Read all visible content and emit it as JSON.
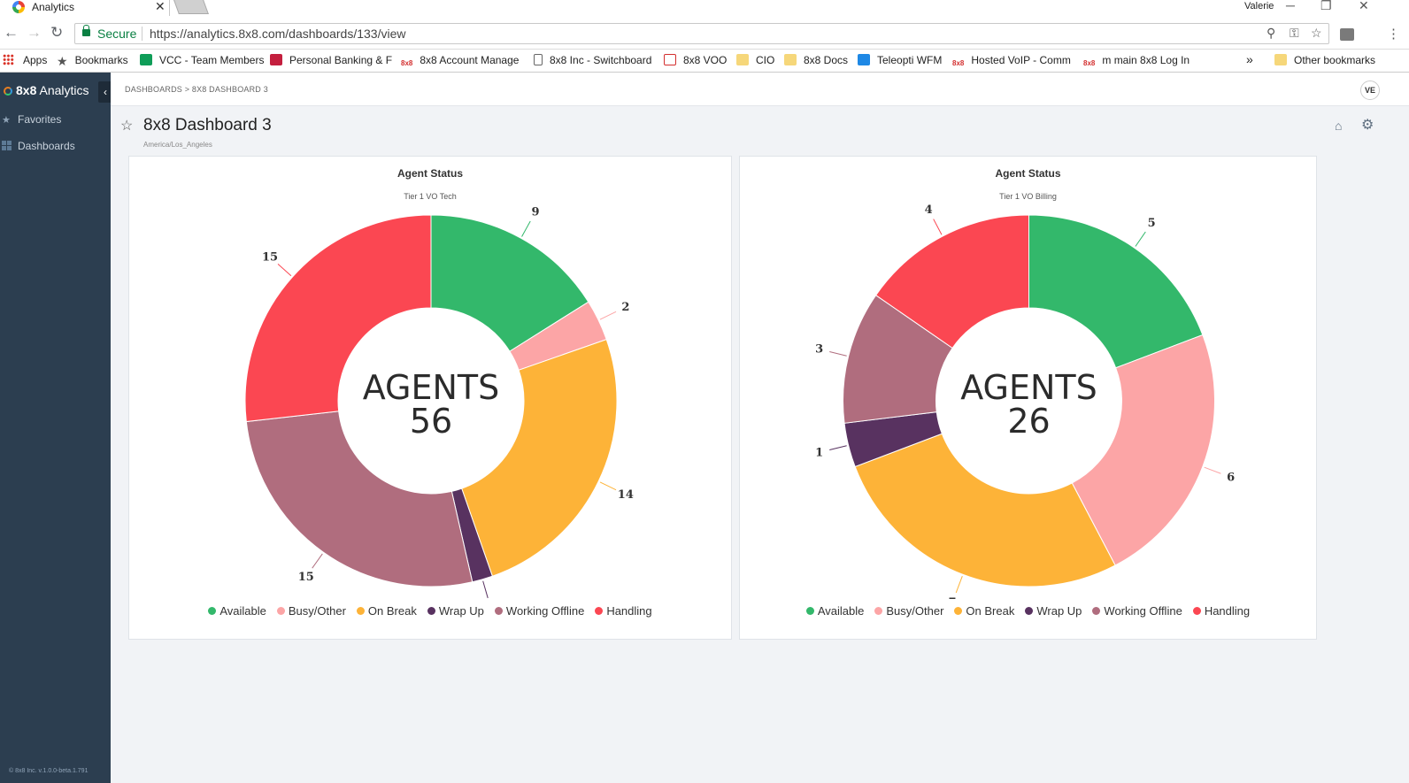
{
  "browser": {
    "tab_title": "Analytics",
    "tab_close": "✕",
    "user": "Valerie",
    "secure_label": "Secure",
    "url": "https://analytics.8x8.com/dashboards/133/view",
    "bookmarks": {
      "apps": "Apps",
      "bookmarks": "Bookmarks",
      "vcc": "VCC - Team Members",
      "banking": "Personal Banking & F",
      "account": "8x8 Account Manage",
      "switchboard": "8x8 Inc - Switchboard",
      "voo": "8x8 VOO",
      "cio": "CIO",
      "docs": "8x8 Docs",
      "teleopti": "Teleopti WFM",
      "hosted": "Hosted VoIP - Comm",
      "main": "m main 8x8 Log In",
      "more": "»",
      "other": "Other bookmarks"
    }
  },
  "sidebar": {
    "brand_bold": "8x8",
    "brand_rest": " Analytics",
    "collapse": "‹",
    "items": [
      {
        "label": "Favorites"
      },
      {
        "label": "Dashboards"
      }
    ],
    "version": "© 8x8 Inc. v.1.0.0-beta.1.791"
  },
  "header": {
    "breadcrumb": "DASHBOARDS > 8X8 DASHBOARD 3",
    "avatar": "VE",
    "title": "8x8 Dashboard 3",
    "timezone": "America/Los_Angeles"
  },
  "colors": {
    "available": "#33b86b",
    "busy_other": "#fca5a6",
    "on_break": "#fdb338",
    "wrap_up": "#583260",
    "working_offline": "#b06d7e",
    "handling": "#fb4752"
  },
  "chart_data": [
    {
      "type": "pie",
      "title": "Agent Status",
      "subtitle": "Tier 1 VO Tech",
      "center_label": "AGENTS",
      "center_value": "56",
      "categories": [
        "Available",
        "Busy/Other",
        "On Break",
        "Wrap Up",
        "Working Offline",
        "Handling"
      ],
      "values": [
        9,
        2,
        14,
        1,
        15,
        15
      ],
      "legend": "bottom"
    },
    {
      "type": "pie",
      "title": "Agent Status",
      "subtitle": "Tier 1 VO Billing",
      "center_label": "AGENTS",
      "center_value": "26",
      "categories": [
        "Available",
        "Busy/Other",
        "On Break",
        "Wrap Up",
        "Working Offline",
        "Handling"
      ],
      "values": [
        5,
        6,
        7,
        1,
        3,
        4
      ],
      "legend": "bottom"
    }
  ]
}
